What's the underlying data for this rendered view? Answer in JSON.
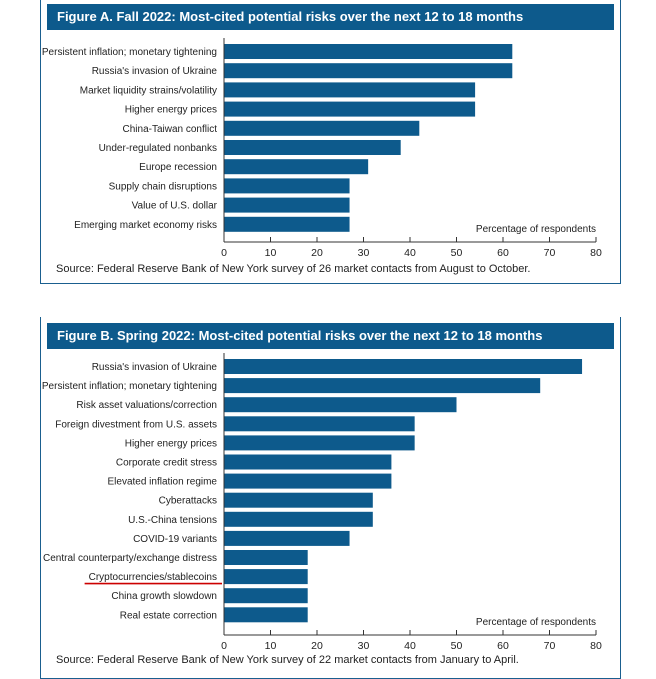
{
  "chart_data": [
    {
      "type": "bar",
      "orientation": "horizontal",
      "title": "Figure A. Fall 2022: Most-cited potential risks over the next 12 to 18 months",
      "categories": [
        "Persistent inflation; monetary tightening",
        "Russia's invasion of Ukraine",
        "Market liquidity strains/volatility",
        "Higher energy prices",
        "China-Taiwan conflict",
        "Under-regulated nonbanks",
        "Europe recession",
        "Supply chain disruptions",
        "Value of U.S. dollar",
        "Emerging market economy risks"
      ],
      "values": [
        62,
        62,
        54,
        54,
        42,
        38,
        31,
        27,
        27,
        27
      ],
      "xlabel": "Percentage of respondents",
      "xlim": [
        0,
        80
      ],
      "xticks": [
        "0",
        "10",
        "20",
        "30",
        "40",
        "50",
        "60",
        "70",
        "80"
      ],
      "source": "Source: Federal Reserve Bank of New York survey of 26 market contacts from August to October.",
      "bar_color": "#0d5a8c"
    },
    {
      "type": "bar",
      "orientation": "horizontal",
      "title": "Figure B. Spring 2022: Most-cited potential risks over the next 12 to 18 months",
      "categories": [
        "Russia's invasion of Ukraine",
        "Persistent inflation; monetary tightening",
        "Risk asset valuations/correction",
        "Foreign divestment from U.S. assets",
        "Higher energy prices",
        "Corporate credit stress",
        "Elevated inflation regime",
        "Cyberattacks",
        "U.S.-China tensions",
        "COVID-19 variants",
        "Central counterparty/exchange distress",
        "Cryptocurrencies/stablecoins",
        "China growth slowdown",
        "Real estate correction"
      ],
      "values": [
        77,
        68,
        50,
        41,
        41,
        36,
        36,
        32,
        32,
        27,
        18,
        18,
        18,
        18
      ],
      "underlined_category": "Cryptocurrencies/stablecoins",
      "underline_color": "#cc0000",
      "xlabel": "Percentage of respondents",
      "xlim": [
        0,
        80
      ],
      "xticks": [
        "0",
        "10",
        "20",
        "30",
        "40",
        "50",
        "60",
        "70",
        "80"
      ],
      "source": "Source: Federal Reserve Bank of New York survey of 22 market contacts from January to April.",
      "bar_color": "#0d5a8c"
    }
  ]
}
